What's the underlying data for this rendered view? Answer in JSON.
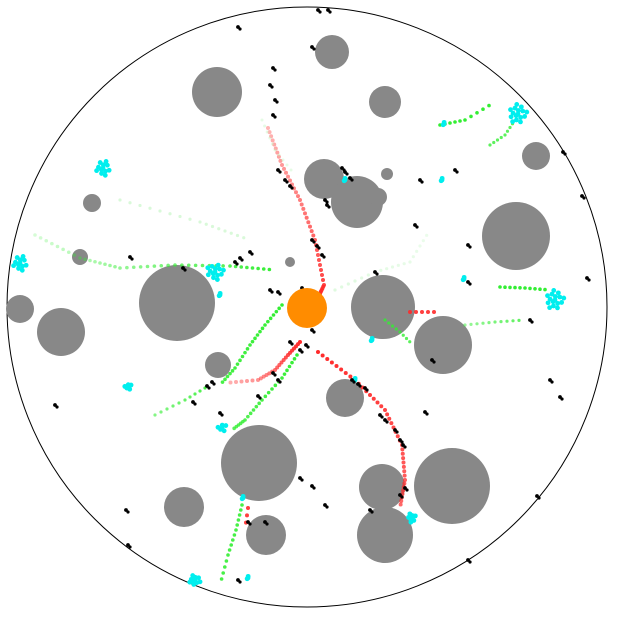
{
  "colors": {
    "background": "#ffffff",
    "boundary": "#000000",
    "obstacle": "#888888",
    "player": "#ff8c00",
    "trail_red": "#ff2a2a",
    "trail_red_faded": "#ff9999",
    "trail_green": "#33ee33",
    "trail_green_faded": "#bff5bf",
    "cyan_cluster": "#00eeee",
    "black_dot": "#000000"
  },
  "icons": {
    "player": "player-orb-icon",
    "obstacle": "obstacle-disc-icon",
    "cluster": "cyan-cluster-icon"
  }
}
